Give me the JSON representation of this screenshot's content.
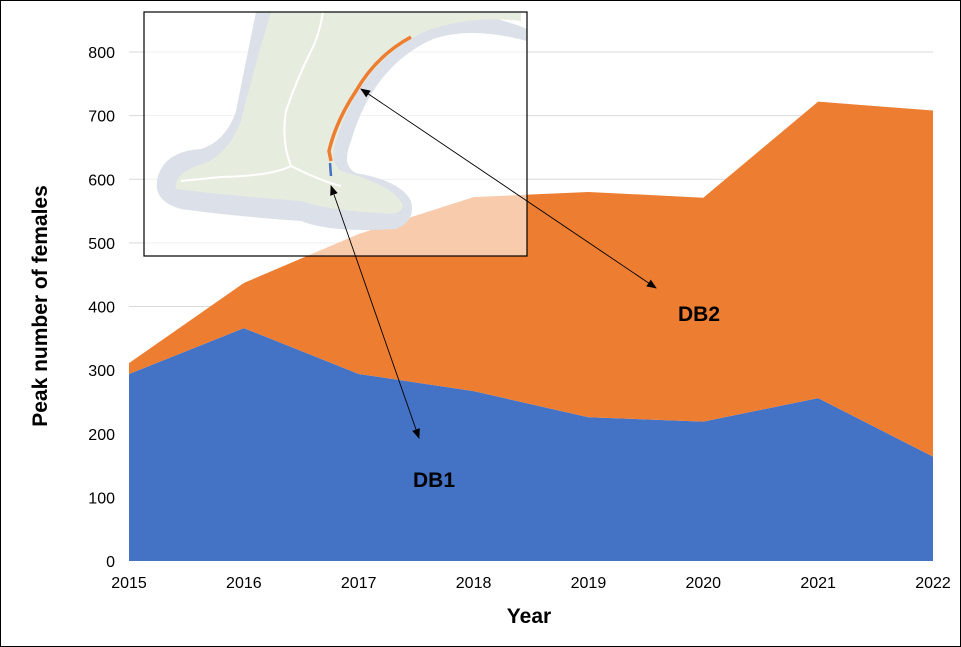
{
  "chart_data": {
    "type": "area",
    "stacked": true,
    "title": "",
    "xlabel": "Year",
    "ylabel": "Peak number of females",
    "x": [
      2015,
      2016,
      2017,
      2018,
      2019,
      2020,
      2021,
      2022
    ],
    "xlim": [
      2015,
      2022
    ],
    "ylim": [
      0,
      800
    ],
    "yticks": [
      0,
      100,
      200,
      300,
      400,
      500,
      600,
      700,
      800
    ],
    "grid": true,
    "legend": "none",
    "series": [
      {
        "name": "DB1",
        "color": "#4472C4",
        "values": [
          294,
          366,
          294,
          267,
          226,
          219,
          256,
          164
        ]
      },
      {
        "name": "DB2",
        "color": "#ED7D31",
        "values": [
          17,
          71,
          220,
          305,
          354,
          352,
          466,
          544
        ]
      }
    ],
    "annotations": [
      {
        "text": "DB1",
        "x": 2017.6,
        "y": 128
      },
      {
        "text": "DB2",
        "x": 2020.0,
        "y": 390
      }
    ],
    "inset": {
      "type": "map",
      "land_color": "#E6EDDF",
      "sea_color": "#DCE0E8",
      "route_colors": [
        "#ED7D31",
        "#4472C4"
      ]
    }
  }
}
